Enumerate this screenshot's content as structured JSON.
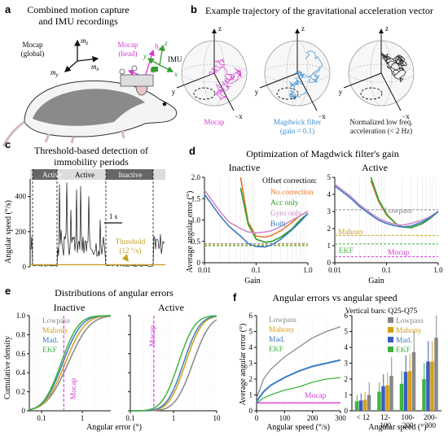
{
  "panel_a": {
    "letter": "a",
    "title_line1": "Combined motion capture",
    "title_line2": "and IMU recordings",
    "mocap_global_line1": "Mocap",
    "mocap_global_line2": "(global)",
    "mocap_head_line1": "Mocap",
    "mocap_head_line2": "(head)",
    "imu_label": "IMU",
    "axes_global": [
      "m_z",
      "m_x",
      "m_y"
    ],
    "axes_head": [
      "h_z",
      "h_y",
      "h_x"
    ],
    "axes_imu": [
      "z",
      "y",
      "x"
    ],
    "colors": {
      "head": "#d63ad6",
      "imu": "#2ca02c",
      "global": "#111111"
    }
  },
  "panel_b": {
    "letter": "b",
    "title": "Example trajectory of the gravitational acceleration vector",
    "spheres": [
      {
        "caption_line1": "Mocap",
        "caption_line2": "",
        "color": "#d63ad6"
      },
      {
        "caption_line1": "Magdwick filter",
        "caption_line2": "(gain = 0.1)",
        "color": "#3b8ecf"
      },
      {
        "caption_line1": "Normalized low freq.",
        "caption_line2": "acceleration (< 2 Hz)",
        "color": "#111111"
      }
    ],
    "axis_labels": {
      "z": "z",
      "y": "y",
      "neg_x": "−x"
    }
  },
  "panel_c": {
    "letter": "c",
    "title_line1": "Threshold-based detection of",
    "title_line2": "immobility periods",
    "ylabel": "Angular speed (°/s)",
    "yticks": [
      "0",
      "200",
      "400"
    ],
    "active_label": "Active",
    "inactive_label": "Inactive",
    "scalebar_label": "1 s",
    "threshold_label": "Threshold",
    "threshold_value": "(12 °/s)",
    "threshold_color": "#c8a020"
  },
  "panel_d": {
    "letter": "d",
    "title": "Optimization of Magdwick filter's gain",
    "subtitle_inactive": "Inactive",
    "subtitle_active": "Active",
    "ylabel": "Average angular error (°)",
    "xlabel": "Gain",
    "xticks": [
      "0.01",
      "0.1",
      "1.0"
    ],
    "yticks_left": [
      "0",
      "0.5",
      "1.0",
      "1.5",
      "2.0"
    ],
    "yticks_right": [
      "0",
      "1",
      "2",
      "3",
      "4",
      "5"
    ],
    "legend_title": "Offset correction:",
    "legend": [
      {
        "label": "No correction",
        "color": "#e8762b"
      },
      {
        "label": "Acc only",
        "color": "#2ca02c"
      },
      {
        "label": "Gyro only",
        "color": "#d08cc8"
      },
      {
        "label": "Both",
        "color": "#3b7cc4"
      }
    ],
    "ref_labels": {
      "lowpass": "Lowpass",
      "mahony": "Mahony",
      "ekf": "EKF",
      "mocap": "Mocap"
    },
    "ref_colors": {
      "lowpass": "#888888",
      "mahony": "#d4a017",
      "ekf": "#3fb53f",
      "mocap": "#d63ad6"
    }
  },
  "panel_e": {
    "letter": "e",
    "title": "Distributions of angular errors",
    "subtitle_inactive": "Inactive",
    "subtitle_active": "Active",
    "ylabel": "Cumulative density",
    "xlabel": "Angular error (°)",
    "xticks": [
      "0.1",
      "1",
      "10"
    ],
    "yticks": [
      "0",
      "0.2",
      "0.4",
      "0.6",
      "0.8",
      "1.0"
    ],
    "mocap_label": "Mocap",
    "legend": [
      {
        "label": "Lowpass",
        "color": "#888888"
      },
      {
        "label": "Mahony",
        "color": "#d4a017"
      },
      {
        "label": "Mad.",
        "color": "#3b7cc4"
      },
      {
        "label": "EKF",
        "color": "#3fb53f"
      }
    ]
  },
  "panel_f": {
    "letter": "f",
    "title": "Angular errors vs angular speed",
    "vbars_note": "Vertical bars: Q25-Q75",
    "ylabel": "Average angular error (°)",
    "xlabel": "Angular speed (°/s)",
    "xticks": [
      "0",
      "100",
      "200",
      "300"
    ],
    "yticks": [
      "0",
      "1",
      "2",
      "3",
      "4",
      "5",
      "6"
    ],
    "mocap_label": "Mocap",
    "legend": [
      {
        "label": "Lowpass",
        "color": "#888888"
      },
      {
        "label": "Mahony",
        "color": "#d4a017"
      },
      {
        "label": "Mad.",
        "color": "#3b7cc4"
      },
      {
        "label": "EKF",
        "color": "#3fb53f"
      }
    ],
    "bar_categories": [
      "< 12",
      "12-\n100",
      "100-\n200",
      "200-\n300"
    ],
    "bar_xlabel": "Angular speed (°)"
  },
  "chart_data": [
    {
      "type": "line",
      "title": "Optimization of Magdwick filter's gain — Inactive",
      "xlabel": "Gain",
      "ylabel": "Average angular error (°)",
      "xscale": "log",
      "xlim": [
        0.01,
        1.0
      ],
      "ylim": [
        0,
        2.0
      ],
      "x": [
        0.01,
        0.02,
        0.03,
        0.05,
        0.07,
        0.1,
        0.15,
        0.2,
        0.3,
        0.5,
        0.7,
        1.0
      ],
      "series": [
        {
          "name": "No correction",
          "values": [
            null,
            null,
            null,
            2.0,
            0.95,
            0.62,
            0.6,
            0.64,
            0.75,
            0.95,
            1.1,
            1.2
          ]
        },
        {
          "name": "Acc only",
          "values": [
            null,
            null,
            null,
            1.75,
            0.9,
            0.55,
            0.48,
            0.5,
            0.6,
            0.8,
            1.0,
            1.15
          ]
        },
        {
          "name": "Gyro only",
          "values": [
            1.7,
            1.2,
            0.95,
            0.8,
            0.72,
            0.7,
            0.72,
            0.75,
            0.85,
            1.0,
            1.1,
            1.2
          ]
        },
        {
          "name": "Both",
          "values": [
            1.6,
            1.1,
            0.85,
            0.62,
            0.45,
            0.38,
            0.37,
            0.42,
            0.55,
            0.78,
            0.95,
            1.15
          ]
        }
      ],
      "reference_lines": [
        {
          "name": "Lowpass",
          "y": 0.45
        },
        {
          "name": "Mahony",
          "y": 0.42
        },
        {
          "name": "EKF",
          "y": 0.4
        }
      ]
    },
    {
      "type": "line",
      "title": "Optimization of Magdwick filter's gain — Active",
      "xlabel": "Gain",
      "ylabel": "Average angular error (°)",
      "xscale": "log",
      "xlim": [
        0.01,
        1.0
      ],
      "ylim": [
        0,
        5
      ],
      "x": [
        0.01,
        0.02,
        0.03,
        0.05,
        0.07,
        0.1,
        0.15,
        0.2,
        0.3,
        0.5,
        0.7,
        1.0
      ],
      "series": [
        {
          "name": "No correction",
          "values": [
            null,
            null,
            null,
            4.8,
            3.6,
            2.8,
            2.3,
            2.1,
            2.05,
            2.3,
            2.6,
            3.0
          ]
        },
        {
          "name": "Acc only",
          "values": [
            null,
            null,
            null,
            5.0,
            3.7,
            2.85,
            2.3,
            2.1,
            2.05,
            2.3,
            2.6,
            3.0
          ]
        },
        {
          "name": "Gyro only",
          "values": [
            4.6,
            3.9,
            3.4,
            2.9,
            2.6,
            2.4,
            2.25,
            2.2,
            2.3,
            2.5,
            2.7,
            3.0
          ]
        },
        {
          "name": "Both",
          "values": [
            4.5,
            3.8,
            3.3,
            2.8,
            2.5,
            2.3,
            2.15,
            2.1,
            2.15,
            2.4,
            2.65,
            3.0
          ]
        }
      ],
      "reference_lines": [
        {
          "name": "Lowpass",
          "y": 3.1
        },
        {
          "name": "Mahony",
          "y": 1.6
        },
        {
          "name": "EKF",
          "y": 1.1
        },
        {
          "name": "Mocap",
          "y": 0.35
        }
      ]
    },
    {
      "type": "line",
      "title": "Distributions of angular errors — Inactive",
      "xlabel": "Angular error (°)",
      "ylabel": "Cumulative density",
      "xscale": "log",
      "xlim": [
        0.05,
        5
      ],
      "ylim": [
        0,
        1.0
      ],
      "series": [
        {
          "name": "Lowpass",
          "median": 0.45,
          "spread": 0.42
        },
        {
          "name": "Mahony",
          "median": 0.38,
          "spread": 0.38
        },
        {
          "name": "Mad.",
          "median": 0.33,
          "spread": 0.36
        },
        {
          "name": "EKF",
          "median": 0.3,
          "spread": 0.34
        }
      ],
      "reference_lines": [
        {
          "name": "Mocap",
          "x": 0.35
        }
      ]
    },
    {
      "type": "line",
      "title": "Distributions of angular errors — Active",
      "xlabel": "Angular error (°)",
      "ylabel": "Cumulative density",
      "xscale": "log",
      "xlim": [
        0.1,
        10
      ],
      "ylim": [
        0,
        1.0
      ],
      "series": [
        {
          "name": "Lowpass",
          "median": 2.8,
          "spread": 0.32
        },
        {
          "name": "Mahony",
          "median": 1.9,
          "spread": 0.3
        },
        {
          "name": "Mad.",
          "median": 1.7,
          "spread": 0.3
        },
        {
          "name": "EKF",
          "median": 1.3,
          "spread": 0.3
        }
      ],
      "reference_lines": [
        {
          "name": "Mocap",
          "x": 0.35
        }
      ]
    },
    {
      "type": "line",
      "title": "Angular errors vs angular speed",
      "xlabel": "Angular speed (°/s)",
      "ylabel": "Average angular error (°)",
      "xlim": [
        0,
        300
      ],
      "ylim": [
        0,
        6
      ],
      "x": [
        0,
        25,
        50,
        100,
        150,
        200,
        250,
        300
      ],
      "series": [
        {
          "name": "Lowpass",
          "values": [
            0.8,
            2.0,
            2.6,
            3.4,
            4.0,
            4.6,
            5.0,
            5.3
          ]
        },
        {
          "name": "Mahony",
          "values": [
            0.6,
            1.2,
            1.6,
            2.1,
            2.5,
            2.8,
            3.0,
            3.2
          ]
        },
        {
          "name": "Mad.",
          "values": [
            0.6,
            1.2,
            1.6,
            2.1,
            2.5,
            2.8,
            3.0,
            3.2
          ]
        },
        {
          "name": "EKF",
          "values": [
            0.5,
            0.8,
            1.0,
            1.3,
            1.5,
            1.8,
            2.0,
            2.1
          ]
        },
        {
          "name": "Mocap",
          "values": [
            0.5,
            0.5,
            0.5,
            0.5,
            0.5,
            0.5,
            0.5,
            0.5
          ]
        }
      ]
    },
    {
      "type": "bar",
      "title": "Angular errors vs angular speed (binned)",
      "xlabel": "Angular speed (°)",
      "ylabel": "Average angular error (°)",
      "categories": [
        "< 12",
        "12-100",
        "100-200",
        "200-300"
      ],
      "ylim": [
        0,
        6
      ],
      "series": [
        {
          "name": "Lowpass",
          "values": [
            1.0,
            2.2,
            3.7,
            4.6
          ],
          "q25": [
            0.6,
            1.3,
            2.5,
            3.2
          ],
          "q75": [
            1.8,
            3.4,
            5.0,
            6.0
          ]
        },
        {
          "name": "Mahony",
          "values": [
            0.7,
            1.6,
            2.5,
            3.1
          ],
          "q25": [
            0.4,
            0.9,
            1.6,
            2.0
          ],
          "q75": [
            1.2,
            2.4,
            3.6,
            4.4
          ]
        },
        {
          "name": "Mad.",
          "values": [
            0.65,
            1.55,
            2.45,
            3.1
          ],
          "q25": [
            0.4,
            0.9,
            1.6,
            2.0
          ],
          "q75": [
            1.1,
            2.3,
            3.5,
            4.4
          ]
        },
        {
          "name": "EKF",
          "values": [
            0.6,
            1.2,
            1.7,
            2.0
          ],
          "q25": [
            0.35,
            0.7,
            1.1,
            1.3
          ],
          "q75": [
            1.0,
            1.8,
            2.5,
            3.0
          ]
        }
      ]
    }
  ]
}
